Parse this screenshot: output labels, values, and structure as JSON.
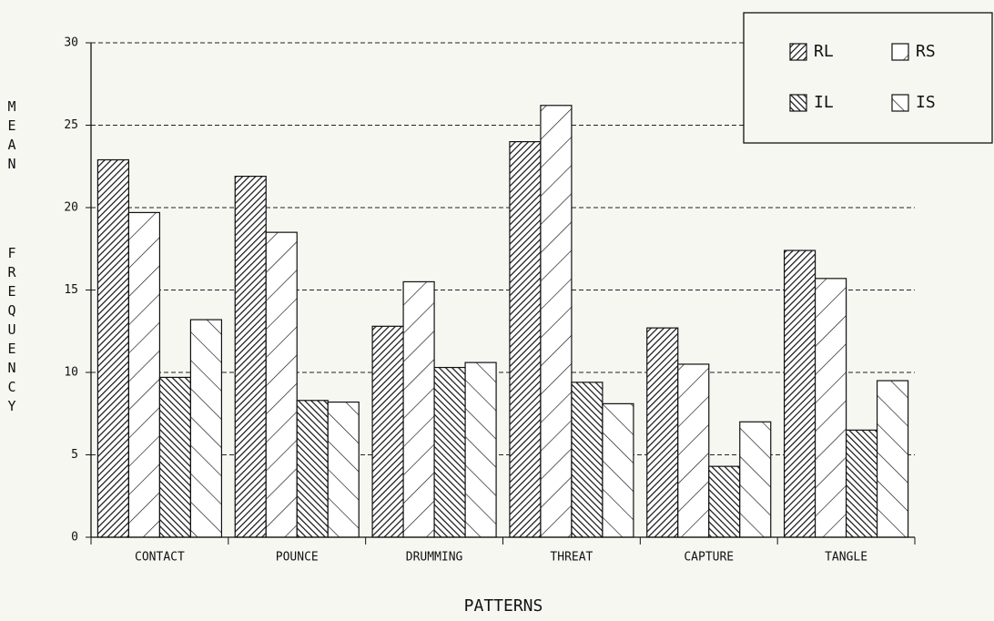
{
  "chart_data": {
    "type": "bar",
    "y_label": "MEAN FREQUENCY",
    "x_label": "PATTERNS",
    "categories": [
      "CONTACT",
      "POUNCE",
      "DRUMMING",
      "THREAT",
      "CAPTURE",
      "TANGLE"
    ],
    "series": [
      {
        "name": "RL",
        "color": "#111111",
        "hatch": "dense-forward",
        "values": [
          22.9,
          21.9,
          12.8,
          24.0,
          12.7,
          17.4
        ]
      },
      {
        "name": "RS",
        "color": "#111111",
        "hatch": "sparse-forward",
        "values": [
          19.7,
          18.5,
          15.5,
          26.2,
          10.5,
          15.7
        ]
      },
      {
        "name": "IL",
        "color": "#111111",
        "hatch": "dense-back",
        "values": [
          9.7,
          8.3,
          10.3,
          9.4,
          4.3,
          6.5
        ]
      },
      {
        "name": "IS",
        "color": "#111111",
        "hatch": "sparse-back",
        "values": [
          13.2,
          8.2,
          10.6,
          8.1,
          7.0,
          9.5
        ]
      }
    ],
    "ylim": [
      0,
      30
    ],
    "yticks": [
      0,
      5,
      10,
      15,
      20,
      25,
      30
    ],
    "grid": true,
    "legend": "upper right"
  }
}
